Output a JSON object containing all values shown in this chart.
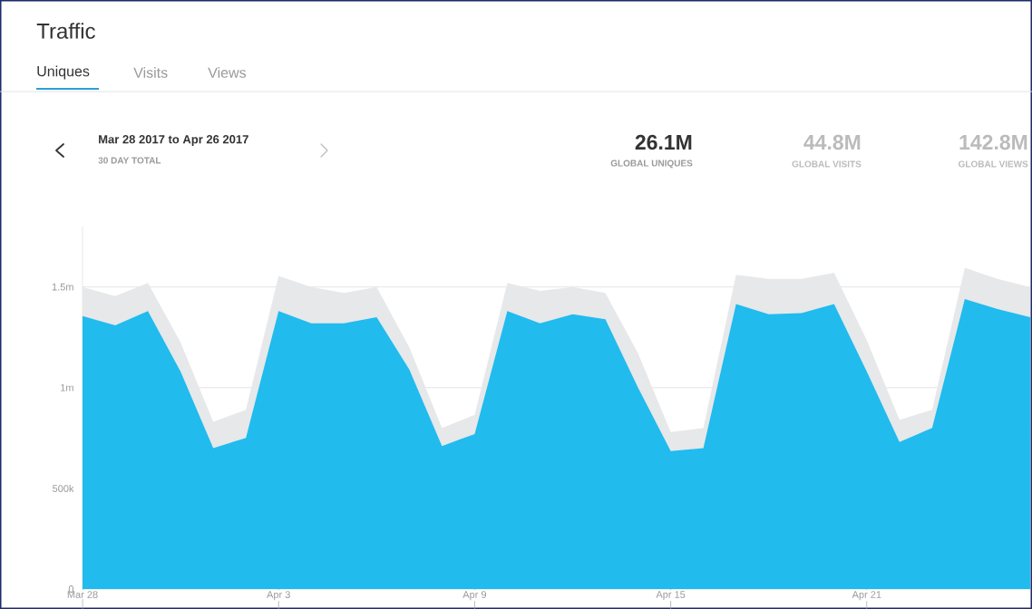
{
  "chart_data": {
    "type": "area",
    "title": "Traffic",
    "subtitle": "Mar 28 2017 to Apr 26 2017",
    "annotations": [
      "Uniques",
      "Visits",
      "Views",
      "30 DAY TOTAL",
      "26.1M",
      "GLOBAL UNIQUES",
      "44.8M",
      "GLOBAL VISITS",
      "142.8M",
      "GLOBAL VIEWS"
    ],
    "categories": [
      "Mar 28",
      null,
      null,
      null,
      null,
      null,
      "Apr 3",
      null,
      null,
      null,
      null,
      null,
      "Apr 9",
      null,
      null,
      null,
      null,
      null,
      "Apr 15",
      null,
      null,
      null,
      null,
      null,
      "Apr 21",
      null,
      null,
      null,
      null,
      null
    ],
    "series": [
      {
        "color": "#e6e8ea",
        "values": [
          1500000,
          1455000,
          1520000,
          1225000,
          830000,
          890000,
          1555000,
          1500000,
          1470000,
          1500000,
          1200000,
          800000,
          865000,
          1520000,
          1480000,
          1500000,
          1470000,
          1170000,
          780000,
          800000,
          1560000,
          1540000,
          1540000,
          1570000,
          1235000,
          840000,
          890000,
          1595000,
          1540000,
          1500000
        ]
      },
      {
        "color": "#21bbee",
        "values": [
          1356000,
          1310000,
          1380000,
          1080000,
          700000,
          750000,
          1380000,
          1320000,
          1320000,
          1350000,
          1090000,
          710000,
          770000,
          1380000,
          1320000,
          1365000,
          1340000,
          1000000,
          685000,
          700000,
          1415000,
          1365000,
          1370000,
          1415000,
          1080000,
          730000,
          800000,
          1440000,
          1390000,
          1350000
        ]
      }
    ],
    "ylim": [
      0,
      1800000
    ],
    "yticks": [
      0,
      {
        "value": 500000,
        "label": "500k"
      },
      {
        "value": 1000000,
        "label": "1m"
      },
      {
        "value": 1500000,
        "label": "1.5m"
      }
    ],
    "grid": "y"
  }
}
